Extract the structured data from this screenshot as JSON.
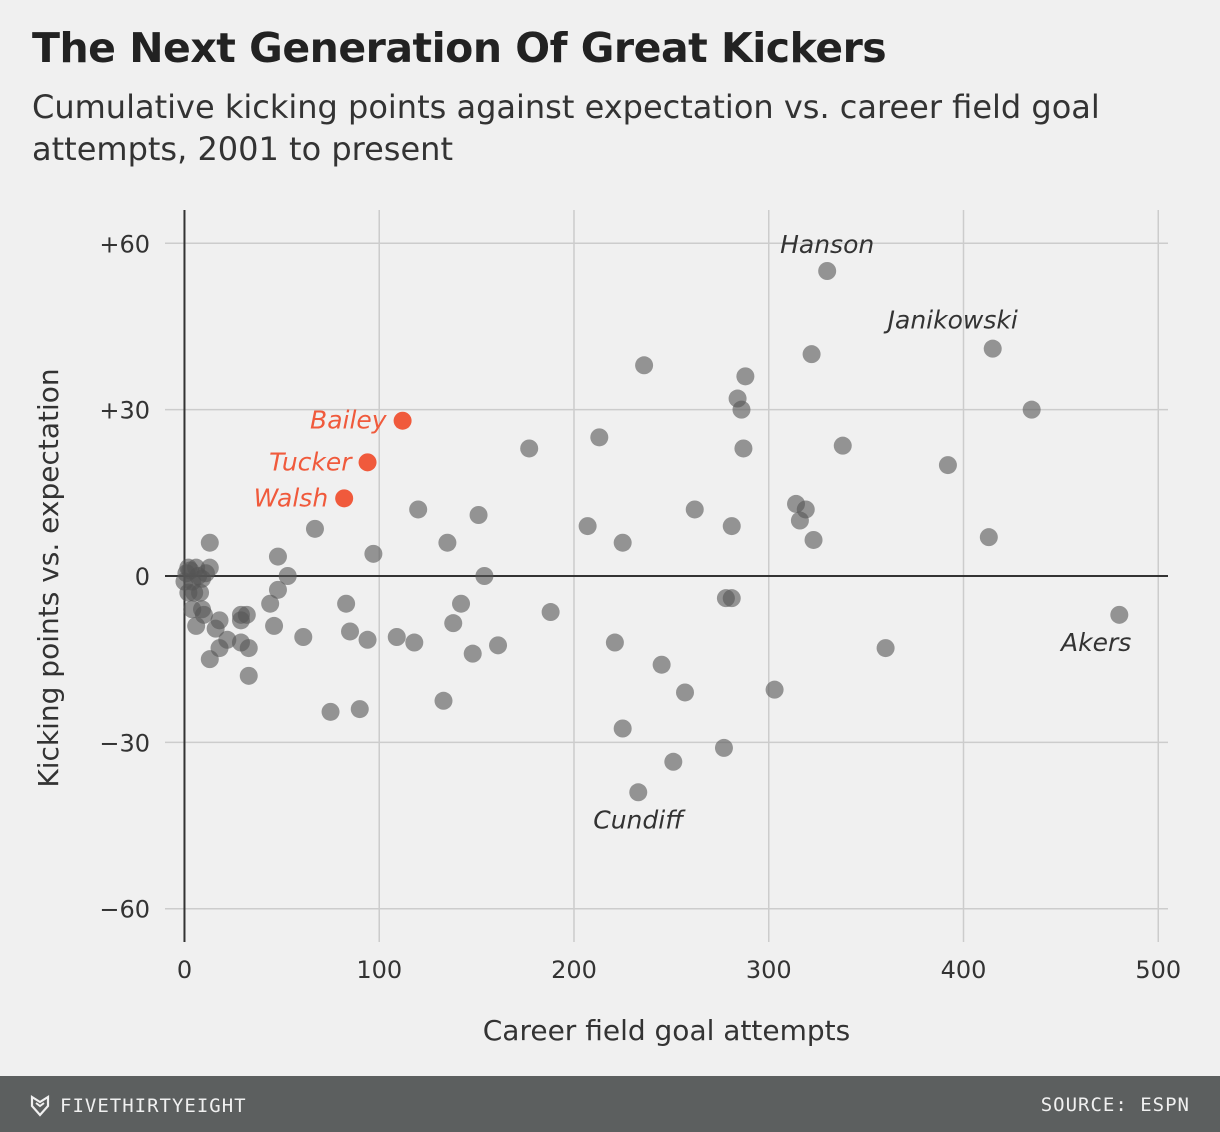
{
  "header": {
    "title": "The Next Generation Of Great Kickers",
    "subtitle": "Cumulative kicking points against expectation vs. career field goal attempts, 2001 to present"
  },
  "footer": {
    "brand": "FIVETHIRTYEIGHT",
    "source": "SOURCE: ESPN"
  },
  "colors": {
    "background": "#f0f0f0",
    "dot": "#555555",
    "highlight": "#f05a3c",
    "grid": "#cccccc",
    "axis": "#333333",
    "footer": "#5c5f5f"
  },
  "chart_data": {
    "type": "scatter",
    "xlabel": "Career field goal attempts",
    "ylabel": "Kicking points vs. expectation",
    "xlim": [
      -10,
      505
    ],
    "ylim": [
      -66,
      66
    ],
    "xticks": [
      0,
      100,
      200,
      300,
      400,
      500
    ],
    "xtick_labels": [
      "0",
      "100",
      "200",
      "300",
      "400",
      "500"
    ],
    "yticks": [
      60,
      30,
      0,
      -30,
      -60
    ],
    "ytick_labels": [
      "+60",
      "+30",
      "0",
      "−30",
      "−60"
    ],
    "grid": true,
    "series": [
      {
        "role": "other kickers",
        "points": [
          [
            330,
            55
          ],
          [
            322,
            40
          ],
          [
            415,
            41
          ],
          [
            435,
            30
          ],
          [
            236,
            38
          ],
          [
            288,
            36
          ],
          [
            284,
            32
          ],
          [
            286,
            30
          ],
          [
            213,
            25
          ],
          [
            177,
            23
          ],
          [
            287,
            23
          ],
          [
            338,
            23.5
          ],
          [
            392,
            20
          ],
          [
            413,
            7
          ],
          [
            314,
            13
          ],
          [
            319,
            12
          ],
          [
            316,
            10
          ],
          [
            323,
            6.5
          ],
          [
            262,
            12
          ],
          [
            281,
            9
          ],
          [
            207,
            9
          ],
          [
            225,
            6
          ],
          [
            120,
            12
          ],
          [
            151,
            11
          ],
          [
            135,
            6
          ],
          [
            67,
            8.5
          ],
          [
            97,
            4
          ],
          [
            48,
            3.5
          ],
          [
            13,
            6
          ],
          [
            13,
            1.5
          ],
          [
            154,
            0
          ],
          [
            53,
            0
          ],
          [
            48,
            -2.5
          ],
          [
            44,
            -5
          ],
          [
            83,
            -5
          ],
          [
            142,
            -5
          ],
          [
            278,
            -4
          ],
          [
            281,
            -4
          ],
          [
            188,
            -6.5
          ],
          [
            480,
            -7
          ],
          [
            46,
            -9
          ],
          [
            61,
            -11
          ],
          [
            85,
            -10
          ],
          [
            94,
            -11.5
          ],
          [
            109,
            -11
          ],
          [
            118,
            -12
          ],
          [
            138,
            -8.5
          ],
          [
            148,
            -14
          ],
          [
            161,
            -12.5
          ],
          [
            221,
            -12
          ],
          [
            245,
            -16
          ],
          [
            257,
            -21
          ],
          [
            303,
            -20.5
          ],
          [
            360,
            -13
          ],
          [
            33,
            -18
          ],
          [
            33,
            -13
          ],
          [
            29,
            -7
          ],
          [
            32,
            -7
          ],
          [
            29,
            -12
          ],
          [
            29,
            -8
          ],
          [
            22,
            -11.5
          ],
          [
            18,
            -13
          ],
          [
            18,
            -8
          ],
          [
            16,
            -9.5
          ],
          [
            13,
            -15
          ],
          [
            10,
            -7
          ],
          [
            9,
            -6
          ],
          [
            6,
            -9
          ],
          [
            4,
            -6
          ],
          [
            5,
            -3
          ],
          [
            8,
            -3
          ],
          [
            2,
            -3
          ],
          [
            0,
            -1
          ],
          [
            1,
            0.5
          ],
          [
            3,
            1
          ],
          [
            6,
            1.5
          ],
          [
            9,
            -0.5
          ],
          [
            11,
            0.5
          ],
          [
            4,
            -1
          ],
          [
            7,
            0
          ],
          [
            2,
            1.5
          ],
          [
            75,
            -24.5
          ],
          [
            90,
            -24
          ],
          [
            133,
            -22.5
          ],
          [
            225,
            -27.5
          ],
          [
            251,
            -33.5
          ],
          [
            277,
            -31
          ],
          [
            233,
            -39
          ]
        ]
      },
      {
        "role": "highlighted",
        "points": [
          {
            "label": "Bailey",
            "x": 112,
            "y": 28
          },
          {
            "label": "Tucker",
            "x": 94,
            "y": 20.5
          },
          {
            "label": "Walsh",
            "x": 82,
            "y": 14
          }
        ]
      }
    ],
    "annotations": [
      {
        "text": "Hanson",
        "x": 330,
        "y": 55,
        "anchor": "above"
      },
      {
        "text": "Janikowski",
        "x": 415,
        "y": 41,
        "anchor": "above-left"
      },
      {
        "text": "Akers",
        "x": 480,
        "y": -7,
        "anchor": "below"
      },
      {
        "text": "Cundiff",
        "x": 233,
        "y": -39,
        "anchor": "below"
      }
    ]
  }
}
